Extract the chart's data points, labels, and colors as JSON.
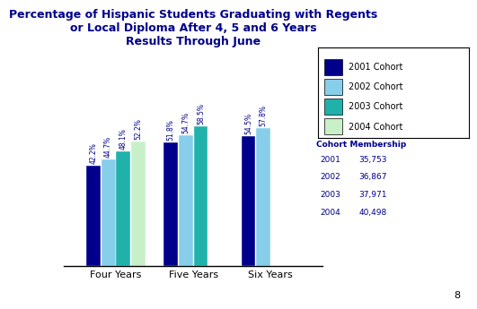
{
  "title": "Percentage of Hispanic Students Graduating with Regents\nor Local Diploma After 4, 5 and 6 Years\nResults Through June",
  "title_color": "#00008B",
  "title_fontsize": 9.0,
  "categories": [
    "Four Years",
    "Five Years",
    "Six Years"
  ],
  "cohorts": [
    "2001 Cohort",
    "2002 Cohort",
    "2003 Cohort",
    "2004 Cohort"
  ],
  "values": {
    "Four Years": [
      42.2,
      44.7,
      48.1,
      52.2
    ],
    "Five Years": [
      51.8,
      54.7,
      58.5,
      null
    ],
    "Six Years": [
      54.5,
      57.8,
      null,
      null
    ]
  },
  "bar_colors": [
    "#00008B",
    "#87CEEB",
    "#20B2AA",
    "#C8F0C8"
  ],
  "bar_width": 0.055,
  "label_fontsize": 5.5,
  "label_color": "#00008B",
  "axis_label_fontsize": 8,
  "legend_fontsize": 7.0,
  "cohort_membership": {
    "2001": "35,753",
    "2002": "36,867",
    "2003": "37,971",
    "2004": "40,498"
  },
  "ylim": [
    0,
    70
  ],
  "background_color": "#ffffff",
  "page_number": "8"
}
